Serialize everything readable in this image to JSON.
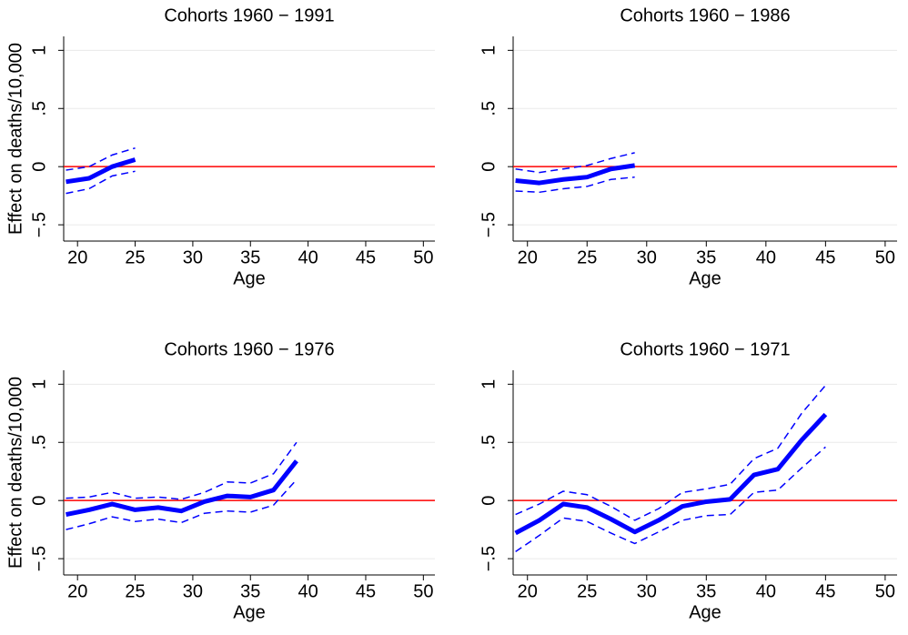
{
  "chart_data": [
    {
      "type": "line",
      "title": "Cohorts 1960 − 1991",
      "x_label": "Age",
      "y_label": "Effect on deaths/10,000",
      "x": [
        19,
        21,
        23,
        25
      ],
      "series": [
        {
          "color": "#0000ff",
          "style": "solid",
          "values": [
            -0.13,
            -0.1,
            0.0,
            0.06
          ]
        },
        {
          "color": "#0000ff",
          "style": "dashed",
          "values": [
            -0.23,
            -0.19,
            -0.08,
            -0.04
          ]
        },
        {
          "color": "#0000ff",
          "style": "dashed",
          "values": [
            -0.03,
            0.0,
            0.1,
            0.16
          ]
        }
      ],
      "xlim": [
        18.8,
        51
      ],
      "xticks": [
        20,
        25,
        30,
        35,
        40,
        45,
        50
      ],
      "ylim": [
        -0.64,
        1.12
      ],
      "yticks": [
        {
          "value": -0.5,
          "label": "−.5"
        },
        0,
        {
          "value": 0.5,
          "label": ".5"
        },
        1
      ],
      "grid": true,
      "refline": 0,
      "refline_color": "#ff0000"
    },
    {
      "type": "line",
      "title": "Cohorts 1960 − 1986",
      "x_label": "Age",
      "x": [
        19,
        21,
        23,
        25,
        27,
        29
      ],
      "series": [
        {
          "color": "#0000ff",
          "style": "solid",
          "values": [
            -0.12,
            -0.14,
            -0.11,
            -0.09,
            -0.02,
            0.01
          ]
        },
        {
          "color": "#0000ff",
          "style": "dashed",
          "values": [
            -0.21,
            -0.22,
            -0.19,
            -0.17,
            -0.11,
            -0.09
          ]
        },
        {
          "color": "#0000ff",
          "style": "dashed",
          "values": [
            -0.02,
            -0.05,
            -0.02,
            0.01,
            0.07,
            0.12
          ]
        }
      ],
      "xlim": [
        18.8,
        51
      ],
      "xticks": [
        20,
        25,
        30,
        35,
        40,
        45,
        50
      ],
      "ylim": [
        -0.64,
        1.12
      ],
      "yticks": [
        {
          "value": -0.5,
          "label": "−.5"
        },
        0,
        {
          "value": 0.5,
          "label": ".5"
        },
        1
      ],
      "grid": true,
      "refline": 0,
      "refline_color": "#ff0000"
    },
    {
      "type": "line",
      "title": "Cohorts 1960 − 1976",
      "x_label": "Age",
      "y_label": "Effect on deaths/10,000",
      "x": [
        19,
        21,
        23,
        25,
        27,
        29,
        31,
        33,
        35,
        37,
        39
      ],
      "series": [
        {
          "color": "#0000ff",
          "style": "solid",
          "values": [
            -0.12,
            -0.08,
            -0.03,
            -0.08,
            -0.06,
            -0.09,
            -0.01,
            0.04,
            0.03,
            0.09,
            0.34
          ]
        },
        {
          "color": "#0000ff",
          "style": "dashed",
          "values": [
            -0.25,
            -0.2,
            -0.14,
            -0.18,
            -0.16,
            -0.19,
            -0.11,
            -0.09,
            -0.1,
            -0.04,
            0.18
          ]
        },
        {
          "color": "#0000ff",
          "style": "dashed",
          "values": [
            0.02,
            0.03,
            0.07,
            0.02,
            0.03,
            0.01,
            0.07,
            0.16,
            0.15,
            0.23,
            0.5
          ]
        }
      ],
      "xlim": [
        18.8,
        51
      ],
      "xticks": [
        20,
        25,
        30,
        35,
        40,
        45,
        50
      ],
      "ylim": [
        -0.64,
        1.12
      ],
      "yticks": [
        {
          "value": -0.5,
          "label": "−.5"
        },
        0,
        {
          "value": 0.5,
          "label": ".5"
        },
        1
      ],
      "grid": true,
      "refline": 0,
      "refline_color": "#ff0000"
    },
    {
      "type": "line",
      "title": "Cohorts 1960 − 1971",
      "x_label": "Age",
      "x": [
        19,
        21,
        23,
        25,
        27,
        29,
        31,
        33,
        35,
        37,
        39,
        41,
        43,
        45
      ],
      "series": [
        {
          "color": "#0000ff",
          "style": "solid",
          "values": [
            -0.28,
            -0.17,
            -0.03,
            -0.06,
            -0.16,
            -0.27,
            -0.17,
            -0.05,
            -0.01,
            0.01,
            0.22,
            0.27,
            0.52,
            0.74
          ]
        },
        {
          "color": "#0000ff",
          "style": "dashed",
          "values": [
            -0.44,
            -0.3,
            -0.15,
            -0.18,
            -0.28,
            -0.37,
            -0.27,
            -0.17,
            -0.13,
            -0.12,
            0.07,
            0.09,
            0.28,
            0.46
          ]
        },
        {
          "color": "#0000ff",
          "style": "dashed",
          "values": [
            -0.12,
            -0.03,
            0.08,
            0.05,
            -0.05,
            -0.17,
            -0.07,
            0.07,
            0.1,
            0.14,
            0.36,
            0.45,
            0.75,
            0.99
          ]
        }
      ],
      "xlim": [
        18.8,
        51
      ],
      "xticks": [
        20,
        25,
        30,
        35,
        40,
        45,
        50
      ],
      "ylim": [
        -0.64,
        1.12
      ],
      "yticks": [
        {
          "value": -0.5,
          "label": "−.5"
        },
        0,
        {
          "value": 0.5,
          "label": ".5"
        },
        1
      ],
      "grid": true,
      "refline": 0,
      "refline_color": "#ff0000"
    }
  ]
}
